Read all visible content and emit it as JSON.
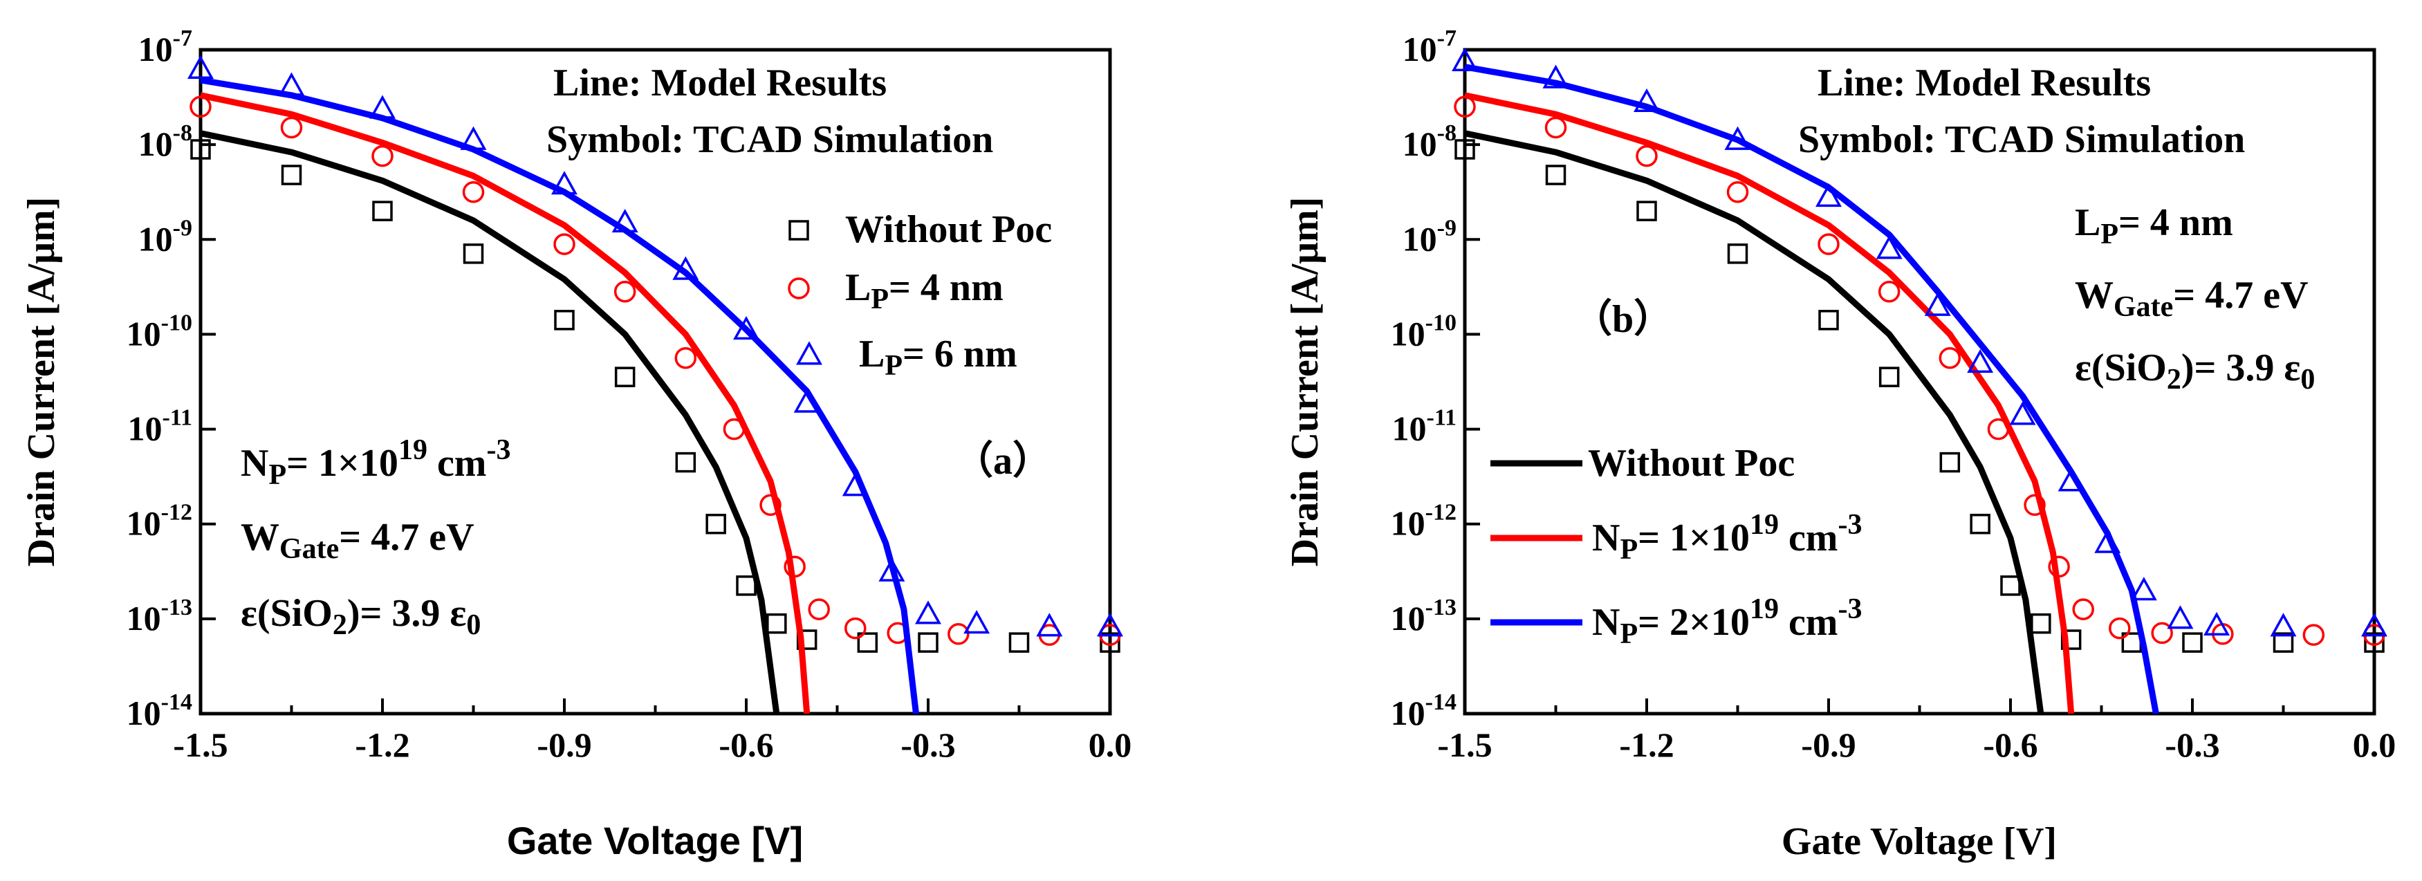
{
  "chart_data": [
    {
      "panel": "a",
      "type": "line",
      "xlabel": "Gate Voltage [V]",
      "ylabel": "Drain Current [A/μm]",
      "xlim": [
        -1.5,
        0.0
      ],
      "ylim_log10": [
        -14,
        -7
      ],
      "xticks": [
        "-1.5",
        "-1.2",
        "-0.9",
        "-0.6",
        "-0.3",
        "0.0"
      ],
      "ytick_exponents": [
        "-14",
        "-13",
        "-12",
        "-11",
        "-10",
        "-9",
        "-8",
        "-7"
      ],
      "ytick_base": "10",
      "annotations": {
        "line1": "Line: Model Results",
        "line2": "Symbol: TCAD Simulation",
        "panel_label": "（a）",
        "np_main": "N",
        "np_sub": "P",
        "np_rest": "= 1×10",
        "np_exp": "19",
        "np_unit": " cm",
        "np_unit_exp": "-3",
        "wgate_main": "W",
        "wgate_sub": "Gate",
        "wgate_rest": "= 4.7 eV",
        "eps_a": "ε(SiO",
        "eps_sub": "2",
        "eps_b": ")= 3.9 ε",
        "eps_sub2": "0"
      },
      "legend": [
        {
          "marker": "square",
          "color": "#000000",
          "label_main": "Without Poc",
          "label_sub": "",
          "label_rest": ""
        },
        {
          "marker": "circle",
          "color": "#ff0000",
          "label_main": "L",
          "label_sub": "P",
          "label_rest": "= 4 nm"
        },
        {
          "marker": "triangle",
          "color": "#0000ff",
          "label_main": "L",
          "label_sub": "P",
          "label_rest": "= 6 nm"
        }
      ],
      "series": [
        {
          "name": "Without Poc",
          "color": "#000000",
          "marker": "square",
          "line": [
            [
              -1.5,
              -7.88
            ],
            [
              -1.35,
              -8.08
            ],
            [
              -1.2,
              -8.38
            ],
            [
              -1.05,
              -8.8
            ],
            [
              -0.9,
              -9.42
            ],
            [
              -0.8,
              -10.0
            ],
            [
              -0.7,
              -10.85
            ],
            [
              -0.65,
              -11.4
            ],
            [
              -0.6,
              -12.15
            ],
            [
              -0.575,
              -12.8
            ],
            [
              -0.55,
              -14.0
            ]
          ],
          "symbols": [
            [
              -1.5,
              -8.05
            ],
            [
              -1.35,
              -8.32
            ],
            [
              -1.2,
              -8.7
            ],
            [
              -1.05,
              -9.15
            ],
            [
              -0.9,
              -9.85
            ],
            [
              -0.8,
              -10.45
            ],
            [
              -0.7,
              -11.35
            ],
            [
              -0.65,
              -12.0
            ],
            [
              -0.6,
              -12.65
            ],
            [
              -0.55,
              -13.05
            ],
            [
              -0.5,
              -13.22
            ],
            [
              -0.4,
              -13.25
            ],
            [
              -0.3,
              -13.25
            ],
            [
              -0.15,
              -13.25
            ],
            [
              0.0,
              -13.25
            ]
          ]
        },
        {
          "name": "Lp= 4 nm",
          "color": "#ff0000",
          "marker": "circle",
          "line": [
            [
              -1.5,
              -7.48
            ],
            [
              -1.35,
              -7.68
            ],
            [
              -1.2,
              -7.98
            ],
            [
              -1.05,
              -8.33
            ],
            [
              -0.9,
              -8.85
            ],
            [
              -0.8,
              -9.35
            ],
            [
              -0.7,
              -10.0
            ],
            [
              -0.62,
              -10.75
            ],
            [
              -0.56,
              -11.55
            ],
            [
              -0.53,
              -12.3
            ],
            [
              -0.51,
              -13.2
            ],
            [
              -0.5,
              -14.0
            ]
          ],
          "symbols": [
            [
              -1.5,
              -7.6
            ],
            [
              -1.35,
              -7.82
            ],
            [
              -1.2,
              -8.12
            ],
            [
              -1.05,
              -8.5
            ],
            [
              -0.9,
              -9.05
            ],
            [
              -0.8,
              -9.55
            ],
            [
              -0.7,
              -10.25
            ],
            [
              -0.62,
              -11.0
            ],
            [
              -0.56,
              -11.8
            ],
            [
              -0.52,
              -12.45
            ],
            [
              -0.48,
              -12.9
            ],
            [
              -0.42,
              -13.1
            ],
            [
              -0.35,
              -13.15
            ],
            [
              -0.25,
              -13.16
            ],
            [
              -0.1,
              -13.17
            ],
            [
              0.0,
              -13.17
            ]
          ]
        },
        {
          "name": "Lp= 6 nm",
          "color": "#0000ff",
          "marker": "triangle",
          "line": [
            [
              -1.5,
              -7.32
            ],
            [
              -1.35,
              -7.48
            ],
            [
              -1.2,
              -7.72
            ],
            [
              -1.05,
              -8.05
            ],
            [
              -0.9,
              -8.5
            ],
            [
              -0.8,
              -8.9
            ],
            [
              -0.7,
              -9.35
            ],
            [
              -0.6,
              -9.95
            ],
            [
              -0.5,
              -10.6
            ],
            [
              -0.42,
              -11.45
            ],
            [
              -0.37,
              -12.2
            ],
            [
              -0.34,
              -12.9
            ],
            [
              -0.32,
              -14.0
            ]
          ],
          "symbols": [
            [
              -1.5,
              -7.2
            ],
            [
              -1.35,
              -7.38
            ],
            [
              -1.2,
              -7.62
            ],
            [
              -1.05,
              -7.95
            ],
            [
              -0.9,
              -8.42
            ],
            [
              -0.8,
              -8.82
            ],
            [
              -0.7,
              -9.32
            ],
            [
              -0.6,
              -9.95
            ],
            [
              -0.5,
              -10.72
            ],
            [
              -0.42,
              -11.6
            ],
            [
              -0.36,
              -12.5
            ],
            [
              -0.3,
              -12.95
            ],
            [
              -0.22,
              -13.05
            ],
            [
              -0.1,
              -13.08
            ],
            [
              0.0,
              -13.08
            ]
          ]
        }
      ]
    },
    {
      "panel": "b",
      "type": "line",
      "xlabel": "Gate Voltage [V]",
      "ylabel": "Drain Current [A/μm]",
      "xlim": [
        -1.5,
        0.0
      ],
      "ylim_log10": [
        -14,
        -7
      ],
      "xticks": [
        "-1.5",
        "-1.2",
        "-0.9",
        "-0.6",
        "-0.3",
        "0.0"
      ],
      "ytick_exponents": [
        "-14",
        "-13",
        "-12",
        "-11",
        "-10",
        "-9",
        "-8",
        "-7"
      ],
      "ytick_base": "10",
      "annotations": {
        "line1": "Line: Model Results",
        "line2": "Symbol: TCAD Simulation",
        "panel_label": "（b）",
        "lp_main": "L",
        "lp_sub": "P",
        "lp_rest": "= 4 nm",
        "wgate_main": "W",
        "wgate_sub": "Gate",
        "wgate_rest": "= 4.7 eV",
        "eps_a": "ε(SiO",
        "eps_sub": "2",
        "eps_b": ")= 3.9 ε",
        "eps_sub2": "0"
      },
      "legend": [
        {
          "marker": "line",
          "color": "#000000",
          "label_main": "Without Poc",
          "label_sub": "",
          "label_rest": "",
          "label_exp": "",
          "label_tail": "",
          "label_tail_exp": ""
        },
        {
          "marker": "line",
          "color": "#ff0000",
          "label_main": "N",
          "label_sub": "P",
          "label_rest": "= 1×10",
          "label_exp": "19",
          "label_tail": " cm",
          "label_tail_exp": "-3"
        },
        {
          "marker": "line",
          "color": "#0000ff",
          "label_main": "N",
          "label_sub": "P",
          "label_rest": "= 2×10",
          "label_exp": "19",
          "label_tail": " cm",
          "label_tail_exp": "-3"
        }
      ],
      "series": [
        {
          "name": "Without Poc",
          "color": "#000000",
          "marker": "square",
          "line": [
            [
              -1.5,
              -7.88
            ],
            [
              -1.35,
              -8.08
            ],
            [
              -1.2,
              -8.38
            ],
            [
              -1.05,
              -8.8
            ],
            [
              -0.9,
              -9.42
            ],
            [
              -0.8,
              -10.0
            ],
            [
              -0.7,
              -10.85
            ],
            [
              -0.65,
              -11.4
            ],
            [
              -0.6,
              -12.15
            ],
            [
              -0.575,
              -12.8
            ],
            [
              -0.55,
              -14.0
            ]
          ],
          "symbols": [
            [
              -1.5,
              -8.05
            ],
            [
              -1.35,
              -8.32
            ],
            [
              -1.2,
              -8.7
            ],
            [
              -1.05,
              -9.15
            ],
            [
              -0.9,
              -9.85
            ],
            [
              -0.8,
              -10.45
            ],
            [
              -0.7,
              -11.35
            ],
            [
              -0.65,
              -12.0
            ],
            [
              -0.6,
              -12.65
            ],
            [
              -0.55,
              -13.05
            ],
            [
              -0.5,
              -13.22
            ],
            [
              -0.4,
              -13.25
            ],
            [
              -0.3,
              -13.25
            ],
            [
              -0.15,
              -13.25
            ],
            [
              0.0,
              -13.25
            ]
          ]
        },
        {
          "name": "Np= 1x10^19 cm^-3",
          "color": "#ff0000",
          "marker": "circle",
          "line": [
            [
              -1.5,
              -7.48
            ],
            [
              -1.35,
              -7.68
            ],
            [
              -1.2,
              -7.98
            ],
            [
              -1.05,
              -8.33
            ],
            [
              -0.9,
              -8.85
            ],
            [
              -0.8,
              -9.35
            ],
            [
              -0.7,
              -10.0
            ],
            [
              -0.62,
              -10.75
            ],
            [
              -0.56,
              -11.55
            ],
            [
              -0.53,
              -12.3
            ],
            [
              -0.51,
              -13.2
            ],
            [
              -0.5,
              -14.0
            ]
          ],
          "symbols": [
            [
              -1.5,
              -7.6
            ],
            [
              -1.35,
              -7.82
            ],
            [
              -1.2,
              -8.12
            ],
            [
              -1.05,
              -8.5
            ],
            [
              -0.9,
              -9.05
            ],
            [
              -0.8,
              -9.55
            ],
            [
              -0.7,
              -10.25
            ],
            [
              -0.62,
              -11.0
            ],
            [
              -0.56,
              -11.8
            ],
            [
              -0.52,
              -12.45
            ],
            [
              -0.48,
              -12.9
            ],
            [
              -0.42,
              -13.1
            ],
            [
              -0.35,
              -13.15
            ],
            [
              -0.25,
              -13.16
            ],
            [
              -0.1,
              -13.17
            ],
            [
              0.0,
              -13.17
            ]
          ]
        },
        {
          "name": "Np= 2x10^19 cm^-3",
          "color": "#0000ff",
          "marker": "triangle",
          "line": [
            [
              -1.5,
              -7.18
            ],
            [
              -1.35,
              -7.35
            ],
            [
              -1.2,
              -7.6
            ],
            [
              -1.05,
              -7.95
            ],
            [
              -0.9,
              -8.45
            ],
            [
              -0.8,
              -8.95
            ],
            [
              -0.72,
              -9.55
            ],
            [
              -0.65,
              -10.1
            ],
            [
              -0.58,
              -10.65
            ],
            [
              -0.5,
              -11.45
            ],
            [
              -0.44,
              -12.1
            ],
            [
              -0.4,
              -12.7
            ],
            [
              -0.38,
              -13.3
            ],
            [
              -0.36,
              -14.0
            ]
          ],
          "symbols": [
            [
              -1.5,
              -7.12
            ],
            [
              -1.35,
              -7.3
            ],
            [
              -1.2,
              -7.55
            ],
            [
              -1.05,
              -7.95
            ],
            [
              -0.9,
              -8.55
            ],
            [
              -0.8,
              -9.1
            ],
            [
              -0.72,
              -9.7
            ],
            [
              -0.65,
              -10.3
            ],
            [
              -0.58,
              -10.85
            ],
            [
              -0.5,
              -11.55
            ],
            [
              -0.44,
              -12.2
            ],
            [
              -0.38,
              -12.7
            ],
            [
              -0.32,
              -13.0
            ],
            [
              -0.26,
              -13.07
            ],
            [
              -0.15,
              -13.08
            ],
            [
              0.0,
              -13.08
            ]
          ]
        }
      ]
    }
  ]
}
